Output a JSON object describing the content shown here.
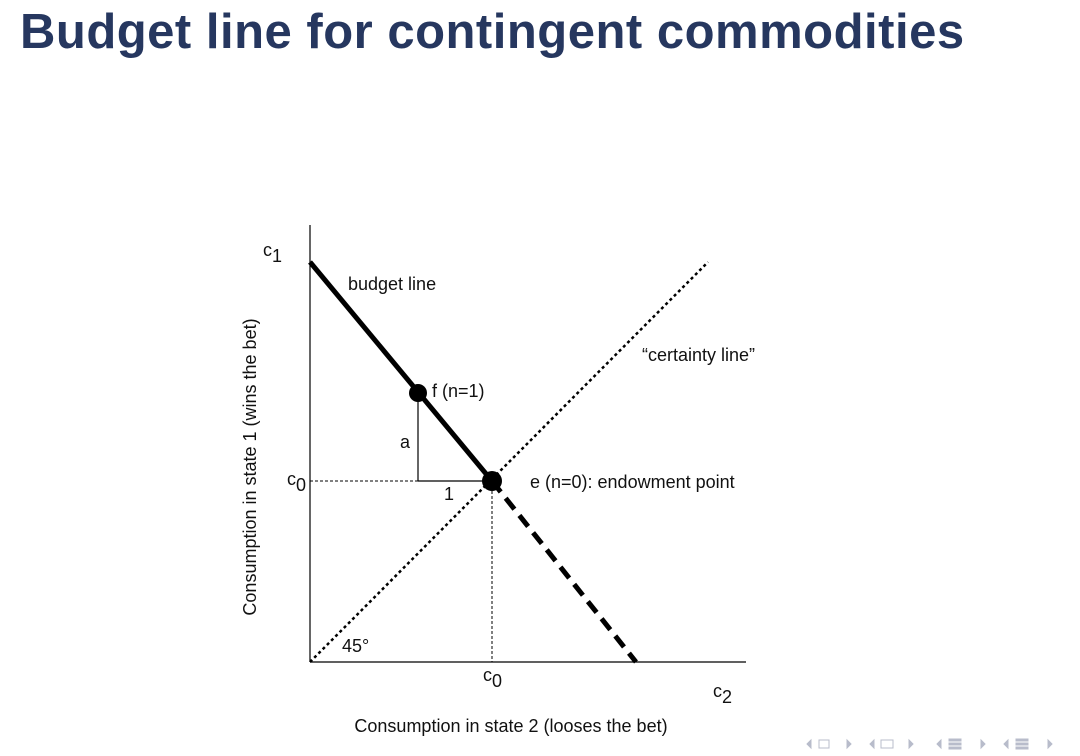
{
  "title": "Budget line for contingent commodities",
  "diagram": {
    "y_axis_label": "Consumption in state 1 (wins the bet)",
    "x_axis_label": "Consumption in state 2 (looses the bet)",
    "y_symbol": {
      "base": "c",
      "sub": "1"
    },
    "x_symbol": {
      "base": "c",
      "sub": "2"
    },
    "y_c0": {
      "base": "c",
      "sub": "0"
    },
    "x_c0": {
      "base": "c",
      "sub": "0"
    },
    "budget_line": "budget line",
    "certainty_line": "“certainty line”",
    "point_f": "f (n=1)",
    "point_e": "e (n=0): endowment point",
    "slope_rise": "a",
    "slope_run": "1",
    "angle": "45°"
  }
}
